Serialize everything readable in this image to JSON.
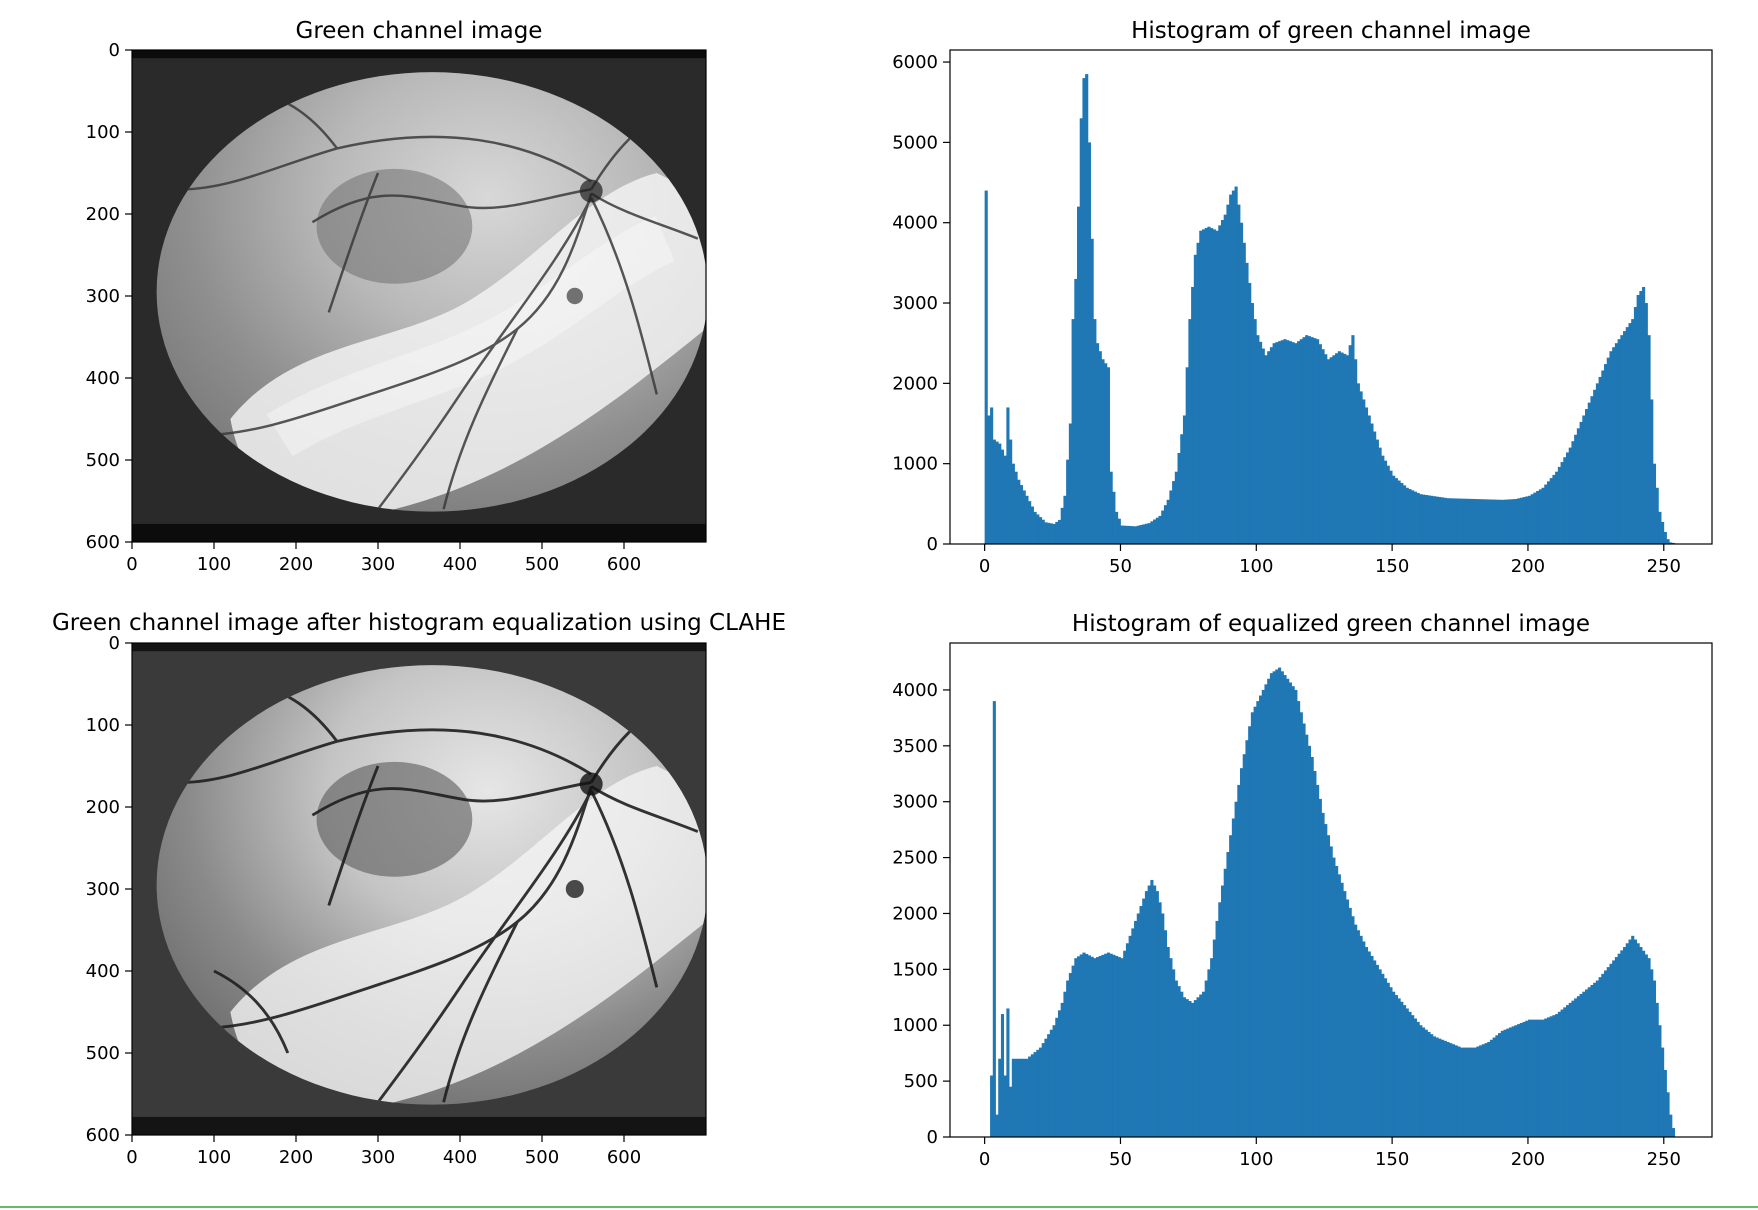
{
  "panels": [
    {
      "id": "img1",
      "title": "Green channel image",
      "xticks": [
        0,
        100,
        200,
        300,
        400,
        500,
        600
      ],
      "yticks": [
        0,
        100,
        200,
        300,
        400,
        500,
        600
      ]
    },
    {
      "id": "img2",
      "title": "Green channel image after histogram equalization using CLAHE",
      "xticks": [
        0,
        100,
        200,
        300,
        400,
        500,
        600
      ],
      "yticks": [
        0,
        100,
        200,
        300,
        400,
        500,
        600
      ]
    }
  ],
  "chart_data": [
    {
      "type": "bar",
      "title": "Histogram of green channel image",
      "xlabel": "",
      "ylabel": "",
      "xlim": [
        -12.75,
        267.75
      ],
      "ylim": [
        0,
        6150
      ],
      "xticks": [
        0,
        50,
        100,
        150,
        200,
        250
      ],
      "yticks": [
        0,
        1000,
        2000,
        3000,
        4000,
        5000,
        6000
      ],
      "color": "#1f77b4",
      "grid": false,
      "profile": [
        [
          0,
          4400
        ],
        [
          1,
          1600
        ],
        [
          2,
          1700
        ],
        [
          3,
          1300
        ],
        [
          5,
          1250
        ],
        [
          7,
          1100
        ],
        [
          8,
          1700
        ],
        [
          9,
          1300
        ],
        [
          10,
          1000
        ],
        [
          12,
          800
        ],
        [
          15,
          600
        ],
        [
          18,
          400
        ],
        [
          22,
          270
        ],
        [
          25,
          250
        ],
        [
          27,
          300
        ],
        [
          29,
          600
        ],
        [
          31,
          1500
        ],
        [
          32,
          2800
        ],
        [
          33,
          3300
        ],
        [
          34,
          4200
        ],
        [
          35,
          5300
        ],
        [
          36,
          5800
        ],
        [
          37,
          5850
        ],
        [
          38,
          5000
        ],
        [
          39,
          3800
        ],
        [
          40,
          2800
        ],
        [
          41,
          2500
        ],
        [
          43,
          2300
        ],
        [
          45,
          2200
        ],
        [
          46,
          900
        ],
        [
          48,
          400
        ],
        [
          50,
          230
        ],
        [
          55,
          220
        ],
        [
          60,
          260
        ],
        [
          64,
          350
        ],
        [
          67,
          550
        ],
        [
          70,
          900
        ],
        [
          73,
          1600
        ],
        [
          75,
          2800
        ],
        [
          77,
          3600
        ],
        [
          79,
          3900
        ],
        [
          82,
          3950
        ],
        [
          85,
          3900
        ],
        [
          88,
          4100
        ],
        [
          90,
          4350
        ],
        [
          92,
          4450
        ],
        [
          94,
          4000
        ],
        [
          96,
          3500
        ],
        [
          98,
          3000
        ],
        [
          100,
          2600
        ],
        [
          103,
          2350
        ],
        [
          106,
          2500
        ],
        [
          110,
          2550
        ],
        [
          114,
          2500
        ],
        [
          118,
          2600
        ],
        [
          122,
          2550
        ],
        [
          126,
          2300
        ],
        [
          130,
          2400
        ],
        [
          133,
          2350
        ],
        [
          135,
          2600
        ],
        [
          137,
          2000
        ],
        [
          140,
          1700
        ],
        [
          143,
          1400
        ],
        [
          146,
          1100
        ],
        [
          150,
          850
        ],
        [
          155,
          700
        ],
        [
          160,
          620
        ],
        [
          170,
          570
        ],
        [
          180,
          560
        ],
        [
          190,
          550
        ],
        [
          195,
          560
        ],
        [
          200,
          600
        ],
        [
          205,
          700
        ],
        [
          210,
          900
        ],
        [
          215,
          1200
        ],
        [
          220,
          1600
        ],
        [
          225,
          2000
        ],
        [
          230,
          2400
        ],
        [
          234,
          2600
        ],
        [
          238,
          2800
        ],
        [
          240,
          3100
        ],
        [
          242,
          3200
        ],
        [
          243,
          3000
        ],
        [
          244,
          2600
        ],
        [
          245,
          1800
        ],
        [
          246,
          1000
        ],
        [
          248,
          400
        ],
        [
          250,
          150
        ],
        [
          251,
          60
        ],
        [
          252,
          20
        ],
        [
          255,
          0
        ]
      ]
    },
    {
      "type": "bar",
      "title": "Histogram of equalized green channel image",
      "xlabel": "",
      "ylabel": "",
      "xlim": [
        -12.75,
        267.75
      ],
      "ylim": [
        0,
        4420
      ],
      "xticks": [
        0,
        50,
        100,
        150,
        200,
        250
      ],
      "yticks": [
        0,
        500,
        1000,
        1500,
        2000,
        2500,
        3000,
        3500,
        4000
      ],
      "color": "#1f77b4",
      "grid": false,
      "profile": [
        [
          0,
          0
        ],
        [
          1,
          0
        ],
        [
          2,
          550
        ],
        [
          3,
          3900
        ],
        [
          4,
          200
        ],
        [
          5,
          700
        ],
        [
          6,
          1100
        ],
        [
          7,
          550
        ],
        [
          8,
          1150
        ],
        [
          9,
          450
        ],
        [
          10,
          700
        ],
        [
          15,
          700
        ],
        [
          20,
          800
        ],
        [
          25,
          1000
        ],
        [
          28,
          1200
        ],
        [
          30,
          1400
        ],
        [
          33,
          1600
        ],
        [
          36,
          1650
        ],
        [
          40,
          1600
        ],
        [
          45,
          1650
        ],
        [
          50,
          1600
        ],
        [
          53,
          1800
        ],
        [
          56,
          2000
        ],
        [
          59,
          2200
        ],
        [
          61,
          2300
        ],
        [
          63,
          2200
        ],
        [
          65,
          2000
        ],
        [
          67,
          1700
        ],
        [
          70,
          1400
        ],
        [
          73,
          1250
        ],
        [
          76,
          1200
        ],
        [
          80,
          1300
        ],
        [
          83,
          1600
        ],
        [
          86,
          2100
        ],
        [
          90,
          2700
        ],
        [
          94,
          3300
        ],
        [
          98,
          3800
        ],
        [
          102,
          4000
        ],
        [
          105,
          4150
        ],
        [
          108,
          4200
        ],
        [
          111,
          4100
        ],
        [
          114,
          4000
        ],
        [
          117,
          3700
        ],
        [
          120,
          3400
        ],
        [
          124,
          2900
        ],
        [
          128,
          2500
        ],
        [
          132,
          2200
        ],
        [
          136,
          1900
        ],
        [
          140,
          1700
        ],
        [
          145,
          1500
        ],
        [
          150,
          1300
        ],
        [
          155,
          1150
        ],
        [
          160,
          1000
        ],
        [
          165,
          900
        ],
        [
          170,
          850
        ],
        [
          175,
          800
        ],
        [
          180,
          800
        ],
        [
          185,
          850
        ],
        [
          190,
          950
        ],
        [
          195,
          1000
        ],
        [
          200,
          1050
        ],
        [
          205,
          1050
        ],
        [
          210,
          1100
        ],
        [
          215,
          1200
        ],
        [
          220,
          1300
        ],
        [
          225,
          1400
        ],
        [
          230,
          1550
        ],
        [
          235,
          1700
        ],
        [
          238,
          1800
        ],
        [
          241,
          1700
        ],
        [
          244,
          1600
        ],
        [
          246,
          1400
        ],
        [
          248,
          1000
        ],
        [
          250,
          600
        ],
        [
          252,
          200
        ],
        [
          253,
          80
        ],
        [
          254,
          0
        ],
        [
          255,
          0
        ]
      ]
    }
  ]
}
